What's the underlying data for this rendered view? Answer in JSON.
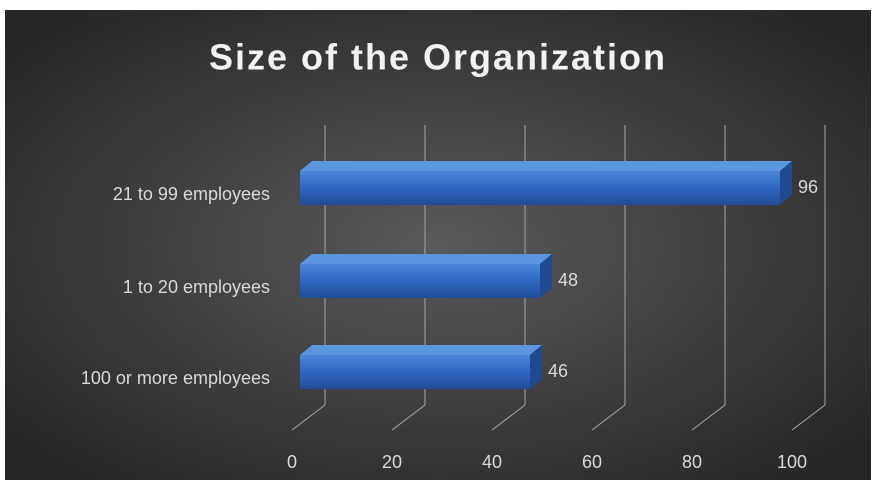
{
  "chart_data": {
    "type": "bar3d",
    "title": "Size of the Organization",
    "categories": [
      "21 to 99 employees",
      "1 to 20 employees",
      "100 or more employees"
    ],
    "values": [
      96,
      48,
      46
    ],
    "color": "#2f68c0",
    "xlim": [
      0,
      100
    ],
    "xticks": [
      0,
      20,
      40,
      60,
      80,
      100
    ],
    "grid": true
  }
}
